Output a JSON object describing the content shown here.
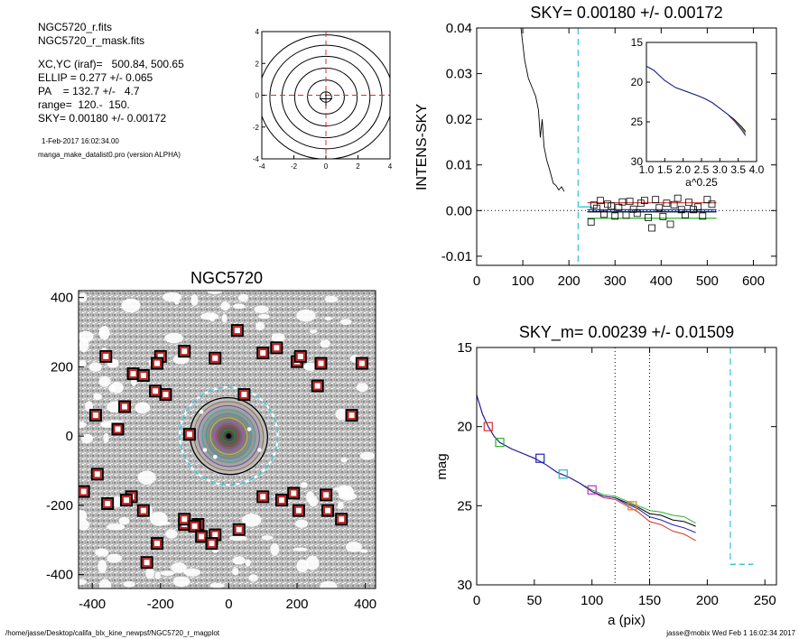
{
  "info": {
    "file": "NGC5720_r.fits",
    "mask_file": "NGC5720_r_mask.fits",
    "xcyc": "XC,YC (iraf)=   500.84, 500.65",
    "ellip": "ELLIP = 0.277 +/- 0.065",
    "pa": "PA    = 132.7 +/-   4.7",
    "range": "range=  120.-  150.",
    "sky": "SKY= 0.00180 +/- 0.00172",
    "date": "1-Feb-2017 16:02:34.00",
    "program": "manga_make_datalist0.pro (version ALPHA)"
  },
  "footer": {
    "path": "/home/jasse/Desktop/califa_blx_kine_newpsf/NGC5720_r_magplot",
    "user_time": "jasse@mobix  Wed Feb  1 16:02:34 2017"
  },
  "chart_data": [
    {
      "id": "contour",
      "type": "contour",
      "title": "",
      "xlim": [
        -4,
        4
      ],
      "ylim": [
        -4,
        4
      ],
      "xticks": [
        "-4",
        "-2",
        "0",
        "2",
        "4"
      ],
      "yticks": [
        "-4",
        "-2",
        "0",
        "2",
        "4"
      ],
      "contour_radii": [
        0.35,
        1.15,
        1.95,
        2.75,
        3.5,
        4.2
      ]
    },
    {
      "id": "sky",
      "type": "line",
      "title": "SKY= 0.00180 +/- 0.00172",
      "xlabel": "",
      "ylabel": "INTENS-SKY",
      "xlim": [
        0,
        650
      ],
      "ylim": [
        -0.012,
        0.04
      ],
      "xticks": [
        "0",
        "100",
        "200",
        "300",
        "400",
        "500",
        "600"
      ],
      "yticks": [
        "-0.01",
        "0.00",
        "0.01",
        "0.02",
        "0.03",
        "0.04"
      ],
      "vline_x": 220,
      "profile_x": [
        96,
        104,
        112,
        120,
        128,
        134,
        138,
        142,
        146,
        152,
        158,
        162,
        166,
        172,
        178,
        184,
        190
      ],
      "profile_y": [
        0.04,
        0.033,
        0.029,
        0.027,
        0.025,
        0.022,
        0.016,
        0.02,
        0.014,
        0.011,
        0.009,
        0.0075,
        0.006,
        0.0055,
        0.0045,
        0.0052,
        0.0042
      ],
      "squares_x": [
        248,
        254,
        260,
        268,
        276,
        284,
        292,
        300,
        308,
        316,
        324,
        332,
        340,
        348,
        356,
        364,
        372,
        380,
        388,
        396,
        404,
        412,
        420,
        428,
        436,
        444,
        452,
        460,
        470,
        480,
        490,
        500,
        510
      ],
      "squares_y": [
        -0.0025,
        0.0012,
        0.0005,
        0.0022,
        -0.0008,
        0.0014,
        0.001,
        -0.0012,
        0.0007,
        0.0019,
        -0.001,
        0.002,
        0.0003,
        -0.0006,
        0.0016,
        0.0022,
        -0.0015,
        -0.0038,
        0.0024,
        0.0006,
        -0.0013,
        0.0016,
        -0.003,
        0.0013,
        0.0027,
        0.0002,
        -0.0009,
        0.0018,
        0.0002,
        0.0008,
        -0.0012,
        0.0024,
        0.0014
      ],
      "level_lines": [
        {
          "color": "#d93030",
          "y": 0.0017
        },
        {
          "color": "#2020c0",
          "y": 0.0002
        },
        {
          "color": "#20b8c8",
          "y": -0.0002
        },
        {
          "color": "#2ab02a",
          "y": -0.0017
        },
        {
          "color": "#000000",
          "y": -0.0003
        }
      ],
      "inset": {
        "xlabel": "a^0.25",
        "xlim": [
          1.0,
          4.0
        ],
        "ylim": [
          15,
          30
        ],
        "xticks": [
          "1.0",
          "1.5",
          "2.0",
          "2.5",
          "3.0",
          "3.5",
          "4.0"
        ],
        "yticks": [
          "15",
          "20",
          "25",
          "30"
        ],
        "x": [
          1.0,
          1.2,
          1.5,
          1.8,
          2.1,
          2.4,
          2.6,
          2.8,
          3.0,
          3.2,
          3.4,
          3.6,
          3.7
        ],
        "y": [
          18.0,
          18.5,
          19.8,
          20.7,
          21.2,
          21.7,
          22.1,
          22.6,
          23.3,
          24.0,
          24.8,
          25.8,
          26.4
        ]
      }
    },
    {
      "id": "image",
      "type": "scatter",
      "title": "NGC5720",
      "xlim": [
        -440,
        430
      ],
      "ylim": [
        -440,
        420
      ],
      "xticks": [
        "-400",
        "-200",
        "0",
        "200",
        "400"
      ],
      "yticks": [
        "-400",
        "-200",
        "0",
        "200",
        "400"
      ],
      "masked_stars_x": [
        25,
        140,
        -130,
        -200,
        -40,
        100,
        -210,
        200,
        270,
        390,
        -360,
        -280,
        -250,
        210,
        260,
        -305,
        -185,
        -390,
        -115,
        45,
        -215,
        -325,
        -425,
        -385,
        -285,
        -300,
        -355,
        -250,
        -130,
        -90,
        -40,
        100,
        155,
        205,
        290,
        330,
        360,
        -130,
        -100,
        -80,
        -50,
        -210,
        -240,
        30,
        190,
        285
      ],
      "masked_stars_y": [
        305,
        255,
        245,
        230,
        225,
        240,
        210,
        215,
        210,
        210,
        230,
        180,
        175,
        230,
        145,
        85,
        120,
        60,
        5,
        120,
        130,
        20,
        -160,
        -110,
        -175,
        -185,
        -195,
        -215,
        -255,
        -255,
        -285,
        -175,
        -185,
        -215,
        -215,
        -240,
        60,
        -240,
        -260,
        -290,
        -310,
        -310,
        -365,
        -270,
        -165,
        -170
      ],
      "ellipse_semi_major": 210,
      "ellipse_axis_ratio": 0.72,
      "ellipse_pa_deg": 132.7
    },
    {
      "id": "mag",
      "type": "line",
      "title": "SKY_m=  0.00239 +/- 0.01509",
      "xlabel": "a (pix)",
      "ylabel": "mag",
      "xlim": [
        0,
        260
      ],
      "ylim": [
        15,
        30
      ],
      "xticks": [
        "0",
        "50",
        "100",
        "150",
        "200",
        "250"
      ],
      "yticks": [
        "15",
        "20",
        "25",
        "30"
      ],
      "vlines_dotted": [
        120,
        150
      ],
      "vline_dashed": 220,
      "x": [
        0,
        5,
        10,
        15,
        20,
        30,
        40,
        50,
        60,
        70,
        80,
        90,
        100,
        110,
        120,
        130,
        140,
        150,
        160,
        170,
        180,
        190
      ],
      "series": [
        {
          "color": "#000000",
          "y": [
            18.0,
            19.2,
            20.0,
            20.6,
            21.0,
            21.4,
            21.7,
            22.0,
            22.4,
            22.9,
            23.2,
            23.6,
            24.1,
            24.4,
            24.5,
            24.8,
            25.1,
            25.5,
            25.6,
            25.9,
            26.0,
            26.3
          ]
        },
        {
          "color": "#2ab02a",
          "y": [
            18.0,
            19.2,
            20.0,
            20.6,
            21.0,
            21.4,
            21.7,
            22.0,
            22.4,
            22.9,
            23.2,
            23.6,
            24.0,
            24.3,
            24.4,
            24.7,
            25.0,
            25.3,
            25.4,
            25.6,
            25.7,
            26.1
          ]
        },
        {
          "color": "#d93030",
          "y": [
            18.0,
            19.2,
            20.0,
            20.6,
            21.0,
            21.4,
            21.7,
            22.0,
            22.4,
            22.9,
            23.2,
            23.6,
            24.1,
            24.5,
            24.6,
            25.0,
            25.4,
            26.0,
            26.2,
            26.6,
            26.8,
            27.2
          ]
        },
        {
          "color": "#2020c0",
          "y": [
            18.0,
            19.2,
            20.0,
            20.6,
            21.0,
            21.4,
            21.7,
            22.0,
            22.4,
            22.9,
            23.2,
            23.6,
            24.1,
            24.4,
            24.5,
            24.9,
            25.2,
            25.7,
            25.9,
            26.2,
            26.4,
            26.7
          ]
        }
      ],
      "markers": [
        {
          "x": 10,
          "y": 20.0,
          "color": "#d93030"
        },
        {
          "x": 20,
          "y": 21.0,
          "color": "#2ab02a"
        },
        {
          "x": 55,
          "y": 22.0,
          "color": "#2020c0"
        },
        {
          "x": 75,
          "y": 23.0,
          "color": "#20b8c8"
        },
        {
          "x": 100,
          "y": 24.0,
          "color": "#c030c0"
        },
        {
          "x": 135,
          "y": 25.0,
          "color": "#e08020"
        }
      ],
      "sky_level_y": 28.7
    }
  ]
}
